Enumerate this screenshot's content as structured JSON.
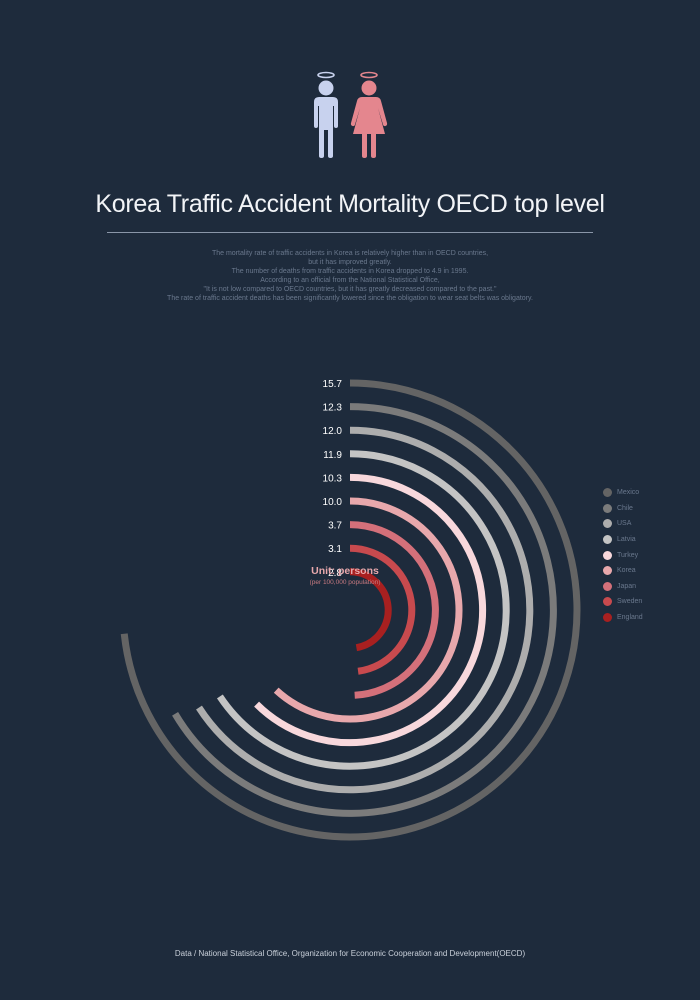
{
  "header": {
    "title": "Korea Traffic Accident Mortality OECD top level",
    "description": [
      "The mortality rate of traffic accidents in Korea is relatively higher than in OECD countries,",
      "but it has improved greatly.",
      "The number of deaths from traffic accidents in Korea dropped to 4.9 in 1995.",
      "According to an official from the National Statistical Office,",
      "\"It is not low compared to OECD countries, but it has greatly decreased compared to the past.\"",
      "The rate of traffic accident deaths has been significantly lowered since the obligation to wear seat belts was obligatory."
    ],
    "icons": {
      "male": "male-angel-icon",
      "female": "female-angel-icon",
      "male_color": "#c8d2ee",
      "female_color": "#e4868e"
    }
  },
  "chart_data": {
    "type": "radial-bar",
    "unit_label": "Unit: persons",
    "unit_sublabel": "(per 100,000 population)",
    "categories": [
      "Mexico",
      "Chile",
      "USA",
      "Latvia",
      "Turkey",
      "Korea",
      "Japan",
      "Sweden",
      "England"
    ],
    "values": [
      15.7,
      12.3,
      12.0,
      11.9,
      10.3,
      10.0,
      3.7,
      3.1,
      2.8
    ],
    "value_labels": [
      "15.7",
      "12.3",
      "12.0",
      "11.9",
      "10.3",
      "10.0",
      "3.7",
      "3.1",
      "2.8"
    ],
    "colors": [
      "#646464",
      "#7b7b7b",
      "#adadad",
      "#c4c4c4",
      "#f8d8dc",
      "#e8a8ac",
      "#d4707a",
      "#c84a4e",
      "#a82020"
    ],
    "legend_position": "right"
  },
  "source": "Data / National Statistical Office, Organization for Economic Cooperation and Development(OECD)"
}
